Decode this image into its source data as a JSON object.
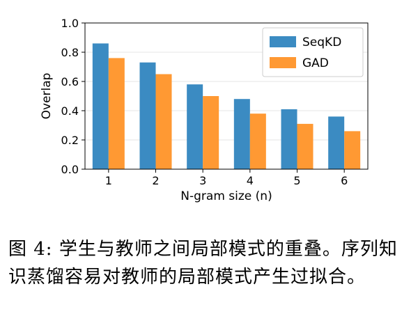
{
  "chart_data": {
    "type": "bar",
    "categories": [
      "1",
      "2",
      "3",
      "4",
      "5",
      "6"
    ],
    "series": [
      {
        "name": "SeqKD",
        "values": [
          0.86,
          0.73,
          0.58,
          0.48,
          0.41,
          0.36
        ],
        "color": "#3b8bc2"
      },
      {
        "name": "GAD",
        "values": [
          0.76,
          0.65,
          0.5,
          0.38,
          0.31,
          0.26
        ],
        "color": "#ff9933"
      }
    ],
    "title": "",
    "xlabel": "N-gram size (n)",
    "ylabel": "Overlap",
    "ylim": [
      0,
      1.0
    ],
    "yticks": [
      "0.0",
      "0.2",
      "0.4",
      "0.6",
      "0.8",
      "1.0"
    ],
    "grid": true,
    "legend": "top-right"
  },
  "caption": "图 4: 学生与教师之间局部模式的重叠。序列知识蒸馏容易对教师的局部模式产生过拟合。"
}
